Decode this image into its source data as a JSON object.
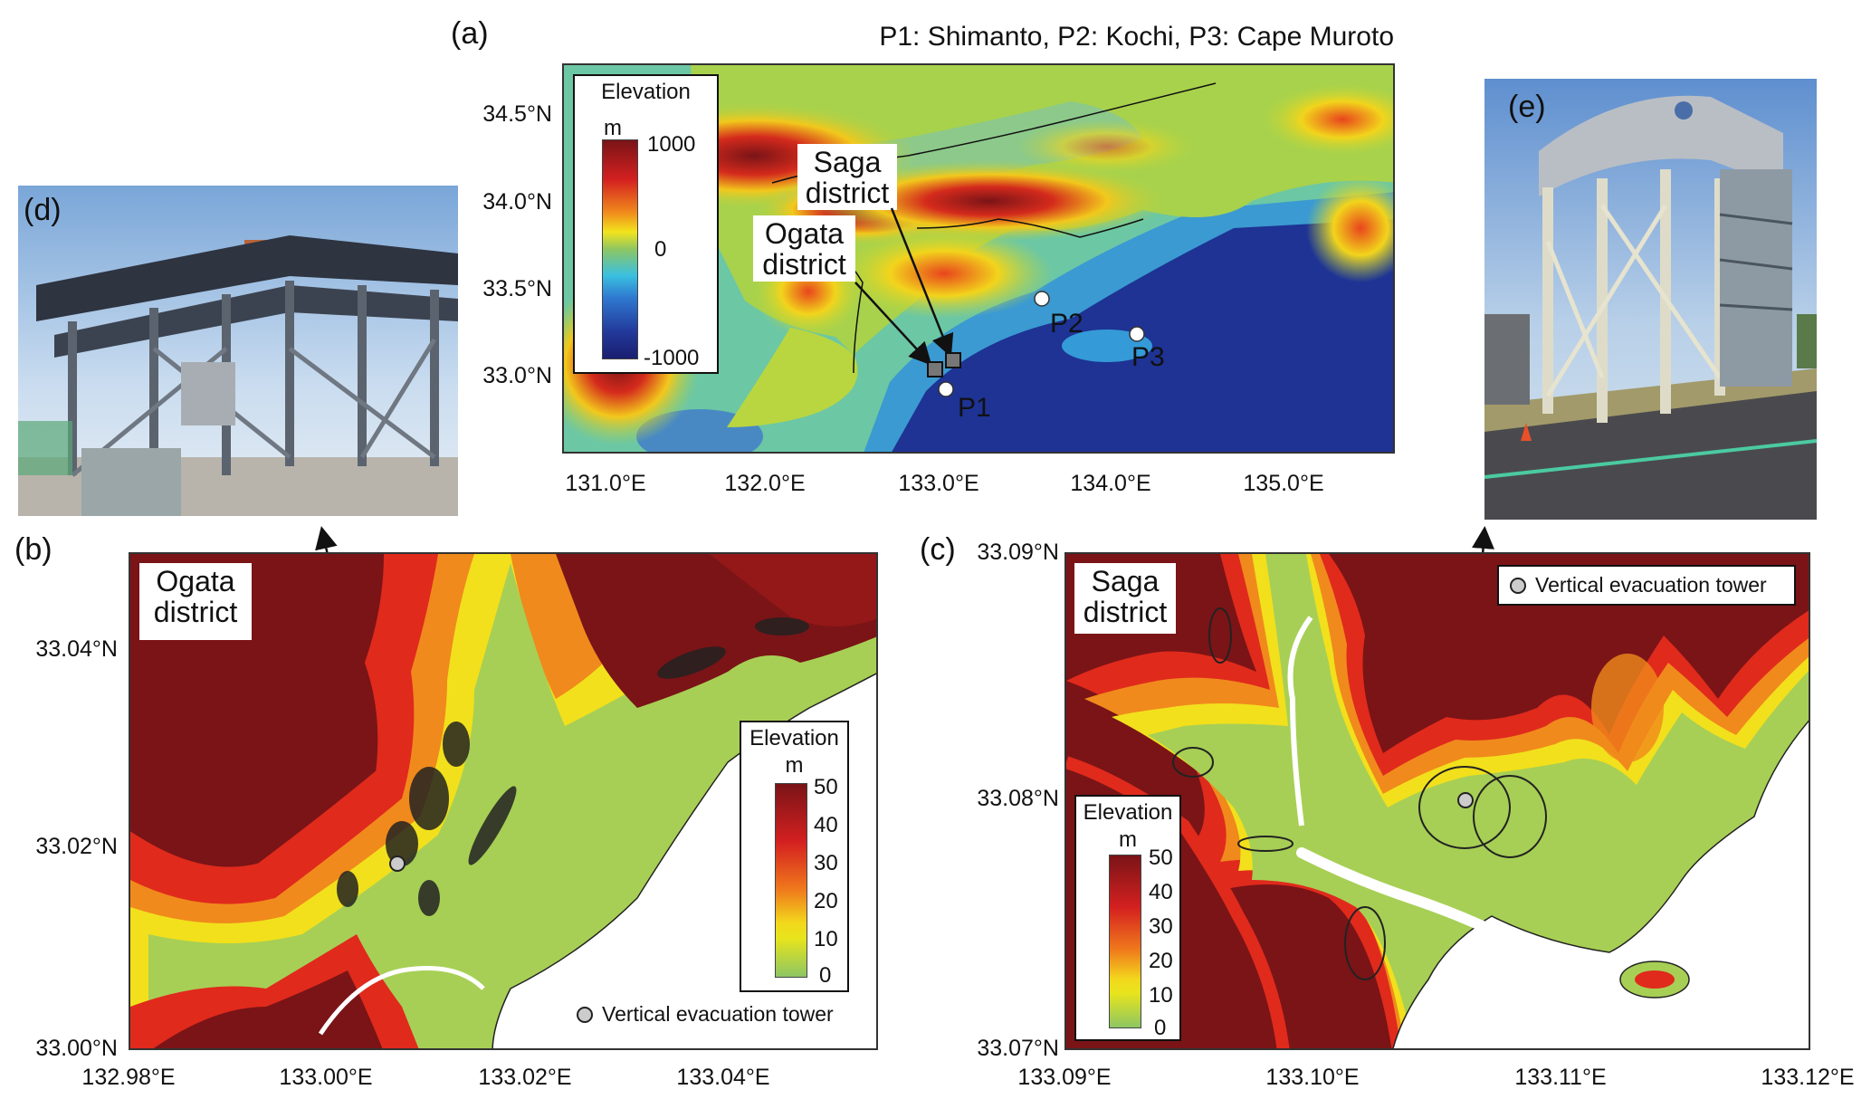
{
  "panel_a": {
    "label": "(a)",
    "title": "P1: Shimanto, P2: Kochi, P3: Cape Muroto",
    "lat_ticks": [
      "34.5°N",
      "34.0°N",
      "33.5°N",
      "33.0°N"
    ],
    "lon_ticks": [
      "131.0°E",
      "132.0°E",
      "133.0°E",
      "134.0°E",
      "135.0°E"
    ],
    "legend": {
      "title": "Elevation",
      "unit": "m",
      "max": "1000",
      "mid": "0",
      "min": "-1000"
    },
    "saga_label": [
      "Saga",
      "district"
    ],
    "ogata_label": [
      "Ogata",
      "district"
    ],
    "points": [
      "P1",
      "P2",
      "P3"
    ]
  },
  "panel_b": {
    "label": "(b)",
    "district_label": [
      "Ogata",
      "district"
    ],
    "lat_ticks": [
      "33.04°N",
      "33.02°N",
      "33.00°N"
    ],
    "lon_ticks": [
      "132.98°E",
      "133.00°E",
      "133.02°E",
      "133.04°E"
    ],
    "legend": {
      "title": "Elevation",
      "unit": "m",
      "ticks": [
        "50",
        "40",
        "30",
        "20",
        "10",
        "0"
      ]
    },
    "tower_legend": "Vertical evacuation tower"
  },
  "panel_c": {
    "label": "(c)",
    "district_label": [
      "Saga",
      "district"
    ],
    "lat_ticks": [
      "33.09°N",
      "33.08°N",
      "33.07°N"
    ],
    "lon_ticks": [
      "133.09°E",
      "133.10°E",
      "133.11°E",
      "133.12°E"
    ],
    "legend": {
      "title": "Elevation",
      "unit": "m",
      "ticks": [
        "50",
        "40",
        "30",
        "20",
        "10",
        "0"
      ]
    },
    "tower_legend": "Vertical evacuation tower"
  },
  "panel_d": {
    "label": "(d)"
  },
  "panel_e": {
    "label": "(e)"
  },
  "colors": {
    "high": "#7a1417",
    "red": "#e02020",
    "orange": "#f08a1c",
    "yellow": "#f2e41c",
    "low": "#8dc663",
    "sea_shallow": "#6cc7a4",
    "sea_deep": "#1b2a8a"
  }
}
